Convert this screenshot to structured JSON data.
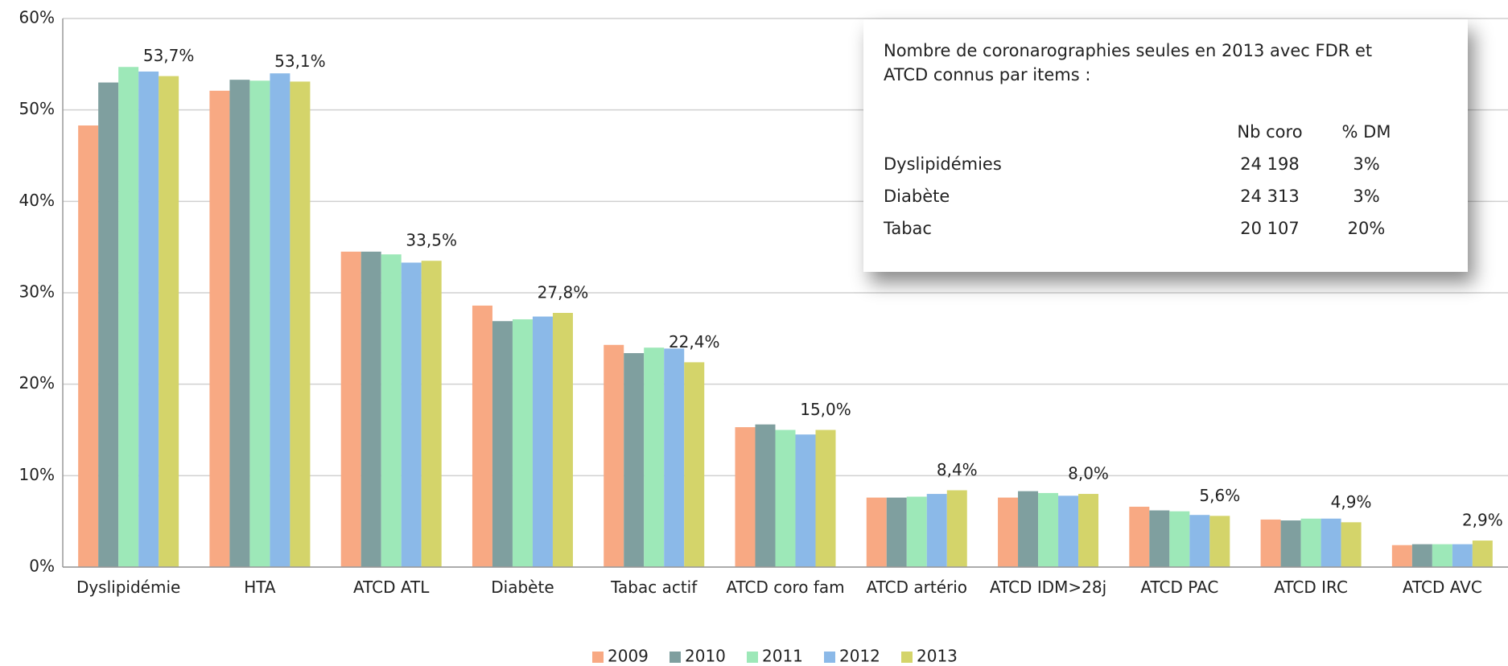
{
  "chart_data": {
    "type": "bar",
    "categories": [
      "Dyslipidémie",
      "HTA",
      "ATCD ATL",
      "Diabète",
      "Tabac actif",
      "ATCD coro fam",
      "ATCD artério",
      "ATCD IDM>28j",
      "ATCD PAC",
      "ATCD IRC",
      "ATCD AVC"
    ],
    "series": [
      {
        "name": "2009",
        "color": "#f8a983",
        "values": [
          48.3,
          52.1,
          34.5,
          28.6,
          24.3,
          15.3,
          7.6,
          7.6,
          6.6,
          5.2,
          2.4
        ]
      },
      {
        "name": "2010",
        "color": "#7f9f9f",
        "values": [
          53.0,
          53.3,
          34.5,
          26.9,
          23.4,
          15.6,
          7.6,
          8.3,
          6.2,
          5.1,
          2.5
        ]
      },
      {
        "name": "2011",
        "color": "#9de8b8",
        "values": [
          54.7,
          53.2,
          34.2,
          27.1,
          24.0,
          15.0,
          7.7,
          8.1,
          6.1,
          5.3,
          2.5
        ]
      },
      {
        "name": "2012",
        "color": "#8bb9e8",
        "values": [
          54.2,
          54.0,
          33.3,
          27.4,
          23.9,
          14.5,
          8.0,
          7.8,
          5.7,
          5.3,
          2.5
        ]
      },
      {
        "name": "2013",
        "color": "#d4d46a",
        "values": [
          53.7,
          53.1,
          33.5,
          27.8,
          22.4,
          15.0,
          8.4,
          8.0,
          5.6,
          4.9,
          2.9
        ],
        "value_labels": [
          "53,7%",
          "53,1%",
          "33,5%",
          "27,8%",
          "22,4%",
          "15,0%",
          "8,4%",
          "8,0%",
          "5,6%",
          "4,9%",
          "2,9%"
        ]
      }
    ],
    "ylim": [
      0,
      60
    ],
    "yticks": [
      {
        "value": 0,
        "label": "0%"
      },
      {
        "value": 10,
        "label": "10%"
      },
      {
        "value": 20,
        "label": "20%"
      },
      {
        "value": 30,
        "label": "30%"
      },
      {
        "value": 40,
        "label": "40%"
      },
      {
        "value": 50,
        "label": "50%"
      },
      {
        "value": 60,
        "label": "60%"
      }
    ],
    "grid": true,
    "legend": "bottom"
  },
  "inset": {
    "title": "Nombre de coronarographies seules en 2013 avec FDR et ATCD connus par items :",
    "columns": [
      "Nb coro",
      "% DM"
    ],
    "rows": [
      {
        "label": "Dyslipidémies",
        "values": [
          "24 198",
          "3%"
        ]
      },
      {
        "label": "Diabète",
        "values": [
          "24 313",
          "3%"
        ]
      },
      {
        "label": "Tabac",
        "values": [
          "20 107",
          "20%"
        ]
      }
    ]
  }
}
